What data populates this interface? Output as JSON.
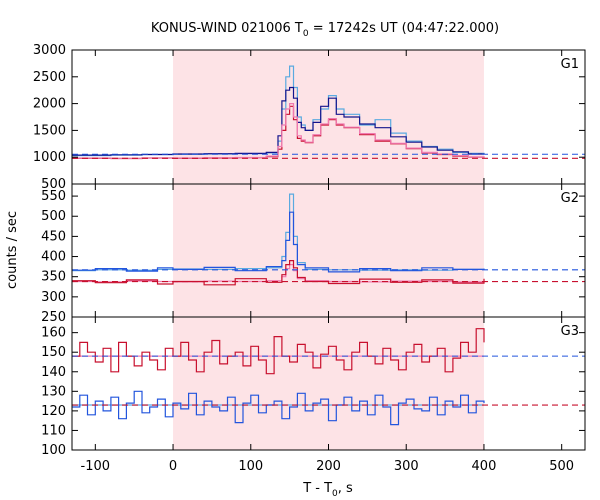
{
  "chart_data": {
    "type": "line",
    "title_main": "KONUS-WIND 021006 T",
    "title_sub": "0",
    "title_rest": " = 17242s UT (04:47:22.000)",
    "xlabel_main": "T - T",
    "xlabel_sub": "0",
    "xlabel_rest": ", s",
    "ylabel": "counts / sec",
    "xlim": [
      -130,
      530
    ],
    "x_ticks": [
      -100,
      0,
      100,
      200,
      300,
      400,
      500
    ],
    "x_tick_labels": [
      "-100",
      "0",
      "100",
      "200",
      "300",
      "400",
      "500"
    ],
    "shaded_interval": [
      0,
      400
    ],
    "colors": {
      "shade": "#fde3e6",
      "dark_blue": "#14148c",
      "light_blue": "#5aaae0",
      "blue": "#2255dd",
      "red": "#c8102e",
      "pink": "#f07ab0"
    },
    "panels": [
      {
        "name": "G1",
        "ylim": [
          500,
          3000
        ],
        "y_ticks": [
          500,
          1000,
          1500,
          2000,
          2500,
          3000
        ],
        "y_tick_labels": [
          "500",
          "1000",
          "1500",
          "2000",
          "2500",
          "3000"
        ],
        "background_levels": [
          1055,
          980
        ],
        "series": [
          {
            "x": [
              -130,
              -80,
              -40,
              0,
              40,
              80,
              120,
              135,
              140,
              145,
              150,
              155,
              160,
              165,
              170,
              180,
              190,
              200,
              210,
              220,
              240,
              260,
              280,
              300,
              320,
              340,
              360,
              380,
              400
            ],
            "y": [
              1030,
              1040,
              1050,
              1055,
              1060,
              1065,
              1080,
              1300,
              1900,
              2500,
              2700,
              2300,
              1750,
              1600,
              1500,
              1700,
              1900,
              2150,
              1900,
              1800,
              1600,
              1700,
              1450,
              1300,
              1200,
              1150,
              1090,
              1070,
              1060
            ],
            "color": "#5aaae0"
          },
          {
            "x": [
              -130,
              -80,
              -40,
              0,
              40,
              80,
              120,
              135,
              140,
              145,
              150,
              155,
              160,
              165,
              170,
              180,
              190,
              200,
              210,
              220,
              240,
              260,
              280,
              300,
              320,
              340,
              360,
              380,
              400
            ],
            "y": [
              1040,
              1045,
              1050,
              1060,
              1065,
              1070,
              1090,
              1400,
              2050,
              2250,
              2300,
              2100,
              1650,
              1550,
              1500,
              1650,
              1950,
              2100,
              1800,
              1750,
              1620,
              1550,
              1380,
              1280,
              1190,
              1130,
              1100,
              1060,
              1050
            ],
            "color": "#14148c"
          },
          {
            "x": [
              -130,
              -80,
              -40,
              0,
              40,
              80,
              120,
              135,
              140,
              145,
              150,
              155,
              160,
              165,
              170,
              180,
              190,
              200,
              210,
              220,
              240,
              260,
              280,
              300,
              320,
              340,
              360,
              380,
              400
            ],
            "y": [
              980,
              975,
              985,
              980,
              985,
              990,
              1010,
              1150,
              1500,
              1800,
              1950,
              1700,
              1350,
              1300,
              1270,
              1400,
              1600,
              1700,
              1600,
              1550,
              1420,
              1300,
              1250,
              1160,
              1080,
              1050,
              1020,
              1000,
              990
            ],
            "color": "#c8102e"
          },
          {
            "x": [
              -130,
              -80,
              -40,
              0,
              40,
              80,
              120,
              135,
              140,
              145,
              150,
              155,
              160,
              165,
              170,
              180,
              190,
              200,
              210,
              220,
              240,
              260,
              280,
              300,
              320,
              340,
              360,
              380,
              400
            ],
            "y": [
              985,
              980,
              985,
              985,
              990,
              995,
              1020,
              1200,
              1600,
              1900,
              2000,
              1750,
              1400,
              1320,
              1280,
              1420,
              1620,
              1720,
              1620,
              1560,
              1440,
              1320,
              1260,
              1170,
              1090,
              1060,
              1030,
              1005,
              995
            ],
            "color": "#f07ab0"
          }
        ]
      },
      {
        "name": "G2",
        "ylim": [
          250,
          580
        ],
        "y_ticks": [
          250,
          300,
          350,
          400,
          450,
          500,
          550
        ],
        "y_tick_labels": [
          "250",
          "300",
          "350",
          "400",
          "450",
          "500",
          "550"
        ],
        "background_levels": [
          367,
          338
        ],
        "series": [
          {
            "x": [
              -130,
              -100,
              -60,
              -20,
              0,
              40,
              80,
              120,
              140,
              145,
              150,
              155,
              160,
              170,
              200,
              240,
              280,
              320,
              360,
              400
            ],
            "y": [
              365,
              367,
              366,
              368,
              369,
              368,
              370,
              372,
              400,
              460,
              555,
              450,
              385,
              368,
              367,
              366,
              367,
              366,
              368,
              367
            ],
            "color": "#5aaae0"
          },
          {
            "x": [
              -130,
              -100,
              -60,
              -20,
              0,
              40,
              80,
              120,
              140,
              145,
              150,
              155,
              160,
              170,
              200,
              240,
              280,
              320,
              360,
              400
            ],
            "y": [
              366,
              370,
              364,
              372,
              368,
              373,
              365,
              375,
              390,
              440,
              510,
              430,
              380,
              372,
              362,
              370,
              365,
              372,
              368,
              370
            ],
            "color": "#2255dd"
          },
          {
            "x": [
              -130,
              -100,
              -60,
              -20,
              0,
              40,
              80,
              120,
              140,
              145,
              150,
              155,
              160,
              170,
              200,
              240,
              280,
              320,
              360,
              400
            ],
            "y": [
              338,
              337,
              339,
              338,
              337,
              339,
              338,
              340,
              350,
              370,
              380,
              365,
              345,
              340,
              338,
              337,
              339,
              338,
              337,
              338
            ],
            "color": "#f07ab0"
          },
          {
            "x": [
              -130,
              -100,
              -60,
              -20,
              0,
              40,
              80,
              120,
              140,
              145,
              150,
              155,
              160,
              170,
              200,
              240,
              280,
              320,
              360,
              400
            ],
            "y": [
              340,
              335,
              342,
              332,
              338,
              330,
              345,
              336,
              355,
              380,
              390,
              372,
              348,
              338,
              333,
              344,
              336,
              342,
              334,
              345
            ],
            "color": "#c8102e"
          }
        ]
      },
      {
        "name": "G3",
        "ylim": [
          100,
          168
        ],
        "y_ticks": [
          100,
          110,
          120,
          130,
          140,
          150,
          160
        ],
        "y_tick_labels": [
          "100",
          "110",
          "120",
          "130",
          "140",
          "150",
          "160"
        ],
        "background_levels": [
          148,
          123
        ],
        "series": [
          {
            "x": [
              -130,
              -100,
              -60,
              -20,
              0,
              40,
              80,
              120,
              160,
              200,
              240,
              280,
              320,
              360,
              400
            ],
            "y": [
              148,
              148,
              148,
              148,
              148,
              148,
              148,
              148,
              148,
              148,
              148,
              148,
              148,
              148,
              148
            ],
            "color": "#f07ab0"
          },
          {
            "x": [
              -130,
              -120,
              -110,
              -100,
              -90,
              -80,
              -70,
              -60,
              -50,
              -40,
              -30,
              -20,
              -10,
              0,
              10,
              20,
              30,
              40,
              50,
              60,
              70,
              80,
              90,
              100,
              110,
              120,
              130,
              140,
              150,
              160,
              170,
              180,
              190,
              200,
              210,
              220,
              230,
              240,
              250,
              260,
              270,
              280,
              290,
              300,
              310,
              320,
              330,
              340,
              350,
              360,
              370,
              380,
              390,
              400
            ],
            "y": [
              148,
              155,
              150,
              145,
              152,
              140,
              155,
              148,
              143,
              150,
              146,
              141,
              152,
              148,
              155,
              146,
              140,
              150,
              156,
              144,
              148,
              150,
              143,
              153,
              146,
              139,
              158,
              148,
              145,
              154,
              150,
              142,
              149,
              153,
              146,
              141,
              150,
              155,
              148,
              144,
              152,
              146,
              141,
              150,
              154,
              145,
              148,
              152,
              140,
              147,
              155,
              150,
              162,
              155
            ],
            "color": "#c8102e"
          },
          {
            "x": [
              -130,
              -100,
              -60,
              -20,
              0,
              40,
              80,
              120,
              160,
              200,
              240,
              280,
              320,
              360,
              400
            ],
            "y": [
              123,
              123,
              123,
              123,
              123,
              123,
              123,
              123,
              123,
              123,
              123,
              123,
              123,
              123,
              123
            ],
            "color": "#5aaae0"
          },
          {
            "x": [
              -130,
              -120,
              -110,
              -100,
              -90,
              -80,
              -70,
              -60,
              -50,
              -40,
              -30,
              -20,
              -10,
              0,
              10,
              20,
              30,
              40,
              50,
              60,
              70,
              80,
              90,
              100,
              110,
              120,
              130,
              140,
              150,
              160,
              170,
              180,
              190,
              200,
              210,
              220,
              230,
              240,
              250,
              260,
              270,
              280,
              290,
              300,
              310,
              320,
              330,
              340,
              350,
              360,
              370,
              380,
              390,
              400
            ],
            "y": [
              122,
              128,
              118,
              125,
              120,
              127,
              116,
              124,
              130,
              119,
              122,
              126,
              117,
              124,
              121,
              129,
              118,
              125,
              122,
              120,
              127,
              114,
              124,
              128,
              119,
              123,
              125,
              116,
              122,
              129,
              120,
              124,
              126,
              115,
              123,
              127,
              120,
              125,
              118,
              128,
              122,
              113,
              124,
              126,
              121,
              120,
              127,
              118,
              125,
              122,
              128,
              119,
              125,
              124
            ],
            "color": "#2255dd"
          }
        ]
      }
    ]
  }
}
